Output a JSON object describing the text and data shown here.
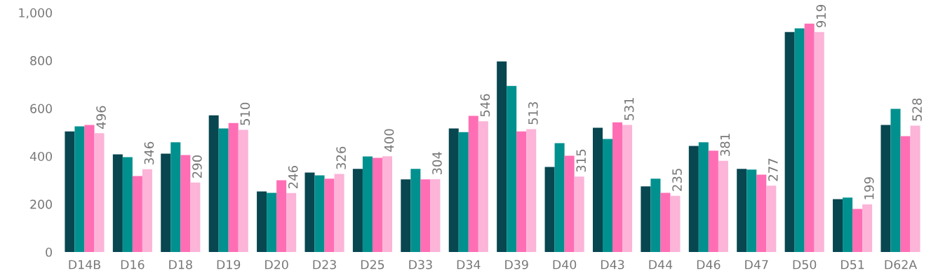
{
  "chart_data": {
    "type": "bar",
    "categories": [
      "D14B",
      "D16",
      "D18",
      "D19",
      "D20",
      "D23",
      "D25",
      "D33",
      "D34",
      "D39",
      "D40",
      "D43",
      "D44",
      "D46",
      "D47",
      "D50",
      "D51",
      "D62A"
    ],
    "series": [
      {
        "color": "#084650",
        "values": [
          504,
          408,
          411,
          571,
          253,
          332,
          347,
          303,
          516,
          796,
          355,
          519,
          274,
          443,
          347,
          919,
          221,
          531
        ]
      },
      {
        "color": "#00918f",
        "values": [
          525,
          396,
          458,
          516,
          247,
          320,
          399,
          347,
          501,
          694,
          455,
          472,
          306,
          458,
          344,
          934,
          227,
          598
        ]
      },
      {
        "color": "#ff6eb4",
        "values": [
          531,
          317,
          405,
          539,
          300,
          306,
          393,
          303,
          569,
          504,
          402,
          542,
          247,
          423,
          323,
          954,
          180,
          484
        ]
      },
      {
        "color": "#fcb4d8",
        "values": [
          496,
          346,
          290,
          510,
          246,
          326,
          400,
          304,
          546,
          513,
          315,
          531,
          235,
          381,
          277,
          919,
          199,
          528
        ],
        "value_labels": [
          "496",
          "346",
          "290",
          "510",
          "246",
          "326",
          "400",
          "304",
          "546",
          "513",
          "315",
          "531",
          "235",
          "381",
          "277",
          "919",
          "199",
          "528"
        ]
      }
    ],
    "ylim": [
      0,
      1000
    ],
    "yticks": [
      0,
      200,
      400,
      600,
      800,
      {
        "value": 1000,
        "label": "1,000"
      }
    ],
    "grid": false
  }
}
